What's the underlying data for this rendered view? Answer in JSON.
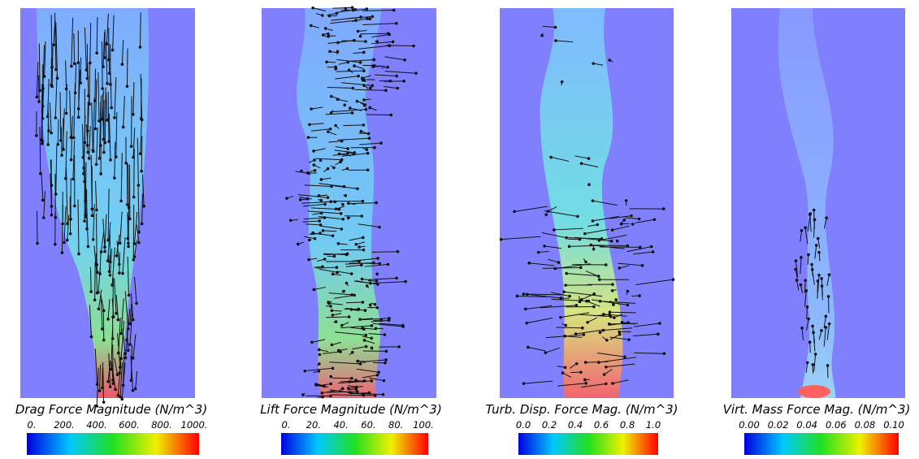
{
  "panels": [
    {
      "title": "Drag Force Magnitude (N/m^3)",
      "colorbar": {
        "ticks": [
          "0.",
          "200.",
          "400.",
          "600.",
          "800.",
          "1000."
        ]
      }
    },
    {
      "title": "Lift Force Magnitude (N/m^3)",
      "colorbar": {
        "ticks": [
          "0.",
          "20.",
          "40.",
          "60.",
          "80.",
          "100."
        ]
      }
    },
    {
      "title": "Turb. Disp. Force Mag. (N/m^3)",
      "colorbar": {
        "ticks": [
          "0.0",
          "0.2",
          "0.4",
          "0.6",
          "0.8",
          "1.0"
        ]
      }
    },
    {
      "title": "Virt. Mass Force Mag. (N/m^3)",
      "colorbar": {
        "ticks": [
          "0.00",
          "0.02",
          "0.04",
          "0.06",
          "0.08",
          "0.10"
        ]
      }
    }
  ]
}
